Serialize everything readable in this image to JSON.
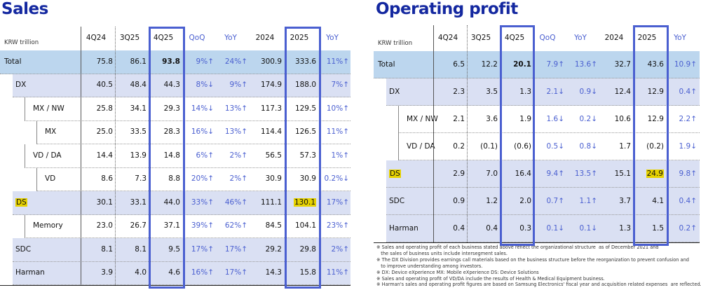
{
  "sales": {
    "title": "Sales",
    "unit": "KRW trillion",
    "headers": [
      "4Q24",
      "3Q25",
      "4Q25",
      "QoQ",
      "YoY",
      "2024",
      "2025",
      "YoY"
    ],
    "rows": [
      {
        "label": "Total",
        "level": 0,
        "values": [
          "75.8",
          "86.1",
          "93.8",
          "9%↑",
          "24%↑",
          "300.9",
          "333.6",
          "11%↑"
        ]
      },
      {
        "label": "DX",
        "level": 1,
        "values": [
          "40.5",
          "48.4",
          "44.3",
          "8%↓",
          "9%↑",
          "174.9",
          "188.0",
          "7%↑"
        ]
      },
      {
        "label": "MX / NW",
        "level": 2,
        "values": [
          "25.8",
          "34.1",
          "29.3",
          "14%↓",
          "13%↑",
          "117.3",
          "129.5",
          "10%↑"
        ]
      },
      {
        "label": "MX",
        "level": 3,
        "values": [
          "25.0",
          "33.5",
          "28.3",
          "16%↓",
          "13%↑",
          "114.4",
          "126.5",
          "11%↑"
        ]
      },
      {
        "label": "VD / DA",
        "level": 2,
        "values": [
          "14.4",
          "13.9",
          "14.8",
          "6%↑",
          "2%↑",
          "56.5",
          "57.3",
          "1%↑"
        ]
      },
      {
        "label": "VD",
        "level": 3,
        "values": [
          "8.6",
          "7.3",
          "8.8",
          "20%↑",
          "2%↑",
          "30.9",
          "30.9",
          "0.2%↓"
        ]
      },
      {
        "label": "DS",
        "level": 1,
        "highlight": true,
        "values": [
          "30.1",
          "33.1",
          "44.0",
          "33%↑",
          "46%↑",
          "111.1",
          "130.1",
          "17%↑"
        ]
      },
      {
        "label": "Memory",
        "level": 2,
        "values": [
          "23.0",
          "26.7",
          "37.1",
          "39%↑",
          "62%↑",
          "84.5",
          "104.1",
          "23%↑"
        ]
      },
      {
        "label": "SDC",
        "level": 1,
        "values": [
          "8.1",
          "8.1",
          "9.5",
          "17%↑",
          "17%↑",
          "29.2",
          "29.8",
          "2%↑"
        ]
      },
      {
        "label": "Harman",
        "level": 1,
        "values": [
          "3.9",
          "4.0",
          "4.6",
          "16%↑",
          "17%↑",
          "14.3",
          "15.8",
          "11%↑"
        ]
      }
    ]
  },
  "op": {
    "title": "Operating profit",
    "unit": "KRW trillion",
    "headers": [
      "4Q24",
      "3Q25",
      "4Q25",
      "QoQ",
      "YoY",
      "2024",
      "2025",
      "YoY"
    ],
    "rows": [
      {
        "label": "Total",
        "level": 0,
        "values": [
          "6.5",
          "12.2",
          "20.1",
          "7.9↑",
          "13.6↑",
          "32.7",
          "43.6",
          "10.9↑"
        ]
      },
      {
        "label": "DX",
        "level": 1,
        "values": [
          "2.3",
          "3.5",
          "1.3",
          "2.1↓",
          "0.9↓",
          "12.4",
          "12.9",
          "0.4↑"
        ]
      },
      {
        "label": "MX / NW",
        "level": 2,
        "values": [
          "2.1",
          "3.6",
          "1.9",
          "1.6↓",
          "0.2↓",
          "10.6",
          "12.9",
          "2.2↑"
        ]
      },
      {
        "label": "VD / DA",
        "level": 2,
        "values": [
          "0.2",
          "(0.1)",
          "(0.6)",
          "0.5↓",
          "0.8↓",
          "1.7",
          "(0.2)",
          "1.9↓"
        ]
      },
      {
        "label": "DS",
        "level": 1,
        "highlight": true,
        "values": [
          "2.9",
          "7.0",
          "16.4",
          "9.4↑",
          "13.5↑",
          "15.1",
          "24.9",
          "9.8↑"
        ]
      },
      {
        "label": "SDC",
        "level": 1,
        "values": [
          "0.9",
          "1.2",
          "2.0",
          "0.7↑",
          "1.1↑",
          "3.7",
          "4.1",
          "0.4↑"
        ]
      },
      {
        "label": "Harman",
        "level": 1,
        "values": [
          "0.4",
          "0.4",
          "0.3",
          "0.1↓",
          "0.1↓",
          "1.3",
          "1.5",
          "0.2↑"
        ]
      }
    ],
    "footnotes": [
      "※ Sales and operating profit of each business stated above reflect the organizational structure  as of December 2021 and\n   the sales of business units include intersegment sales.",
      "※ The DX Division provides earnings call materials based on the business structure before the reorganization to prevent confusion and\n   to improve understanding among investors.",
      "※ DX: Device eXperience MX: Mobile eXperience DS: Device Solutions",
      "※ Sales and operating profit of VD/DA include the results of Health & Medical Equipment business.",
      "※ Harman's sales and operating profit figures are based on Samsung Electronics' fiscal year and acquisition related expenses  are reflected."
    ]
  },
  "colors": {
    "title": "#1428a0",
    "accent": "#4a5fd0",
    "total_bg": "#bcd6ee",
    "sub_bg": "#dae0f3",
    "highlight": "#e6d200"
  }
}
